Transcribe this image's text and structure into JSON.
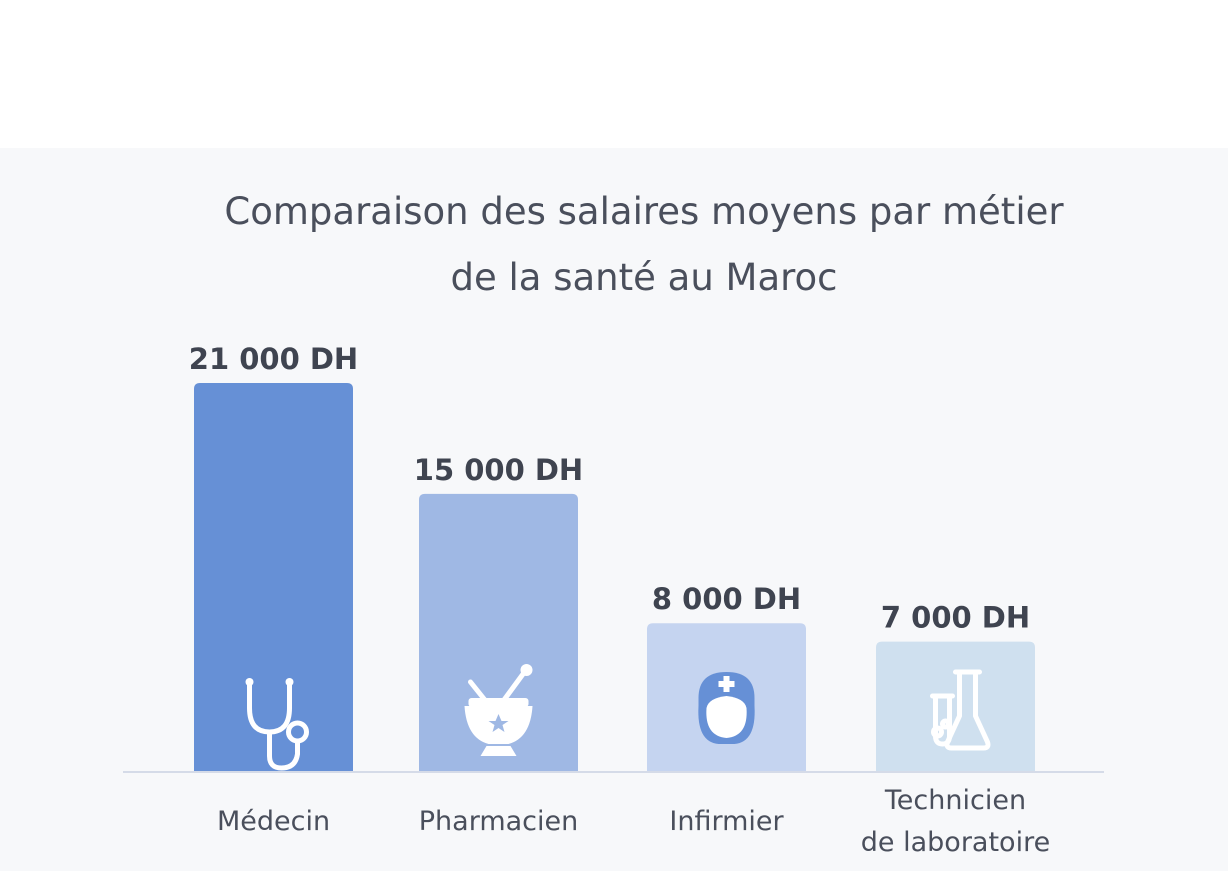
{
  "chart_data": {
    "type": "bar",
    "title_lines": [
      "Comparaison des salaires moyens par métier",
      "de la santé au Maroc"
    ],
    "categories": [
      [
        "Médecin"
      ],
      [
        "Pharmacien"
      ],
      [
        "Infirmier"
      ],
      [
        "Technicien",
        "de laboratoire"
      ]
    ],
    "values": [
      21000,
      15000,
      8000,
      7000
    ],
    "value_labels": [
      "21 000 DH",
      "15 000 DH",
      "8 000 DH",
      "7 000 DH"
    ],
    "ylim": [
      0,
      21000
    ],
    "grid": false,
    "legend": "none",
    "bar_colors": [
      "#6690d6",
      "#9fb8e4",
      "#c5d4f0",
      "#cfe0ef"
    ],
    "icons": [
      "stethoscope-icon",
      "mortar-pestle-icon",
      "nurse-icon",
      "lab-flask-icon"
    ],
    "axis_color": "#d5dbe8"
  }
}
